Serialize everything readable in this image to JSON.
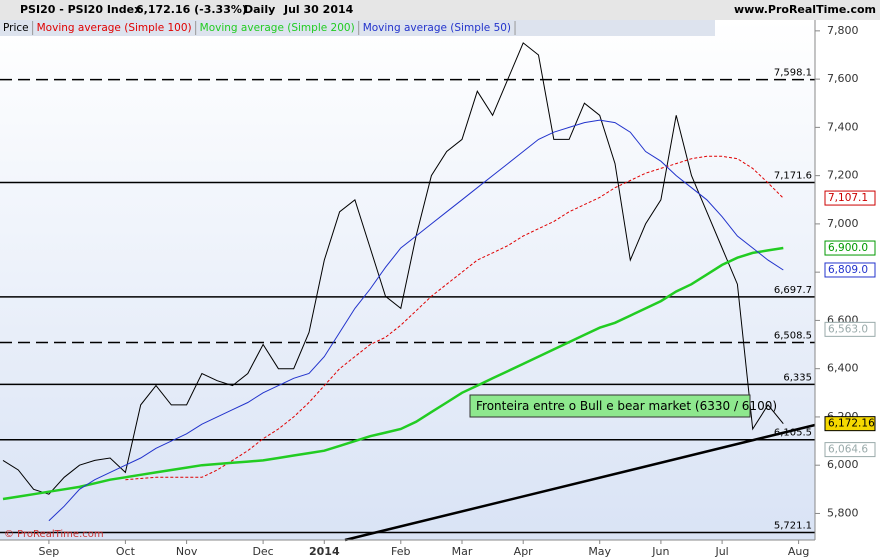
{
  "header": {
    "symbol": "PSI20 - PSI20 Index",
    "quote": "6,172.16 (-3.33%)",
    "period": "Daily",
    "date": "Jul 30 2014",
    "site": "www.ProRealTime.com"
  },
  "chart_data": {
    "type": "line",
    "categories": [
      null,
      null,
      null,
      "Sep",
      null,
      null,
      null,
      null,
      "Oct",
      null,
      null,
      null,
      "Nov",
      null,
      null,
      null,
      null,
      "Dec",
      null,
      null,
      null,
      "2014",
      null,
      null,
      null,
      null,
      "Feb",
      null,
      null,
      null,
      "Mar",
      null,
      null,
      null,
      "Apr",
      null,
      null,
      null,
      null,
      "May",
      null,
      null,
      null,
      "Jun",
      null,
      null,
      null,
      "Jul",
      null,
      null,
      null,
      null,
      "Aug"
    ],
    "series": [
      {
        "name": "Price",
        "color": "#000000",
        "width": 1,
        "values": [
          6020,
          5980,
          5900,
          5880,
          5950,
          6000,
          6020,
          6030,
          5970,
          6250,
          6330,
          6250,
          6250,
          6380,
          6350,
          6330,
          6380,
          6500,
          6400,
          6400,
          6550,
          6850,
          7050,
          7100,
          6900,
          6700,
          6650,
          6950,
          7200,
          7300,
          7350,
          7550,
          7450,
          7600,
          7750,
          7700,
          7350,
          7350,
          7500,
          7450,
          7250,
          6850,
          7000,
          7100,
          7450,
          7200,
          7050,
          6900,
          6750,
          6150,
          6250,
          6172.16,
          null
        ]
      },
      {
        "name": "Moving average (Simple 100)",
        "color": "#e00000",
        "width": 1,
        "dashed": true,
        "values": [
          null,
          null,
          null,
          null,
          null,
          null,
          null,
          null,
          5940,
          5945,
          5950,
          5950,
          5950,
          5950,
          5980,
          6020,
          6060,
          6110,
          6150,
          6200,
          6260,
          6330,
          6400,
          6450,
          6500,
          6530,
          6580,
          6640,
          6700,
          6750,
          6800,
          6850,
          6880,
          6910,
          6950,
          6980,
          7010,
          7050,
          7080,
          7110,
          7150,
          7180,
          7210,
          7230,
          7250,
          7270,
          7280,
          7280,
          7270,
          7230,
          7170,
          7107.1,
          null
        ]
      },
      {
        "name": "Moving average (Simple 200)",
        "color": "#22cc22",
        "width": 2.5,
        "values": [
          5860,
          5870,
          5880,
          5890,
          5900,
          5910,
          5925,
          5940,
          5950,
          5960,
          5970,
          5980,
          5990,
          6000,
          6005,
          6010,
          6015,
          6020,
          6030,
          6040,
          6050,
          6060,
          6080,
          6100,
          6120,
          6135,
          6150,
          6180,
          6220,
          6260,
          6300,
          6330,
          6360,
          6390,
          6420,
          6450,
          6480,
          6510,
          6540,
          6570,
          6590,
          6620,
          6650,
          6680,
          6720,
          6750,
          6790,
          6830,
          6860,
          6880,
          6890,
          6900,
          null
        ]
      },
      {
        "name": "Moving average (Simple 50)",
        "color": "#2233cc",
        "width": 1,
        "values": [
          null,
          null,
          null,
          5770,
          5830,
          5900,
          5940,
          5970,
          6000,
          6030,
          6070,
          6100,
          6130,
          6170,
          6200,
          6230,
          6260,
          6300,
          6330,
          6360,
          6380,
          6450,
          6550,
          6650,
          6730,
          6820,
          6900,
          6950,
          7000,
          7050,
          7100,
          7150,
          7200,
          7250,
          7300,
          7350,
          7380,
          7400,
          7420,
          7430,
          7420,
          7380,
          7300,
          7260,
          7200,
          7150,
          7100,
          7030,
          6950,
          6900,
          6850,
          6809,
          null
        ]
      }
    ],
    "ylim": [
      5690,
      7845
    ],
    "yticks": [
      {
        "value": 5800,
        "label": "5,800"
      },
      {
        "value": 6000,
        "label": "6,000"
      },
      {
        "value": 6200,
        "label": "6,200"
      },
      {
        "value": 6400,
        "label": "6,400"
      },
      {
        "value": 6600,
        "label": "6,600"
      },
      {
        "value": 6800,
        "label": "6,800"
      },
      {
        "value": 7000,
        "label": "7,000"
      },
      {
        "value": 7200,
        "label": "7,200"
      },
      {
        "value": 7400,
        "label": "7,400"
      },
      {
        "value": 7600,
        "label": "7,600"
      },
      {
        "value": 7800,
        "label": "7,800"
      }
    ],
    "levels": [
      {
        "value": 7598.1,
        "label": "7,598.1",
        "dashed": true
      },
      {
        "value": 7171.6,
        "label": "7,171.6"
      },
      {
        "value": 6697.7,
        "label": "6,697.7"
      },
      {
        "value": 6508.5,
        "label": "6,508.5",
        "dashed": true
      },
      {
        "value": 6335,
        "label": "6,335"
      },
      {
        "value": 6105.5,
        "label": "6,105.5"
      },
      {
        "value": 5721.1,
        "label": "5,721.1"
      }
    ],
    "tags": [
      {
        "value": 7107.1,
        "label": "7,107.1",
        "color": "#cc0000",
        "bg": "#ffffff"
      },
      {
        "value": 6900,
        "label": "6,900.0",
        "color": "#009900",
        "bg": "#ffffff"
      },
      {
        "value": 6809,
        "label": "6,809.0",
        "color": "#2233cc",
        "bg": "#ffffff"
      },
      {
        "value": 6563,
        "label": "6,563.0",
        "color": "#9aa",
        "bg": "#ffffff"
      },
      {
        "value": 6172.16,
        "label": "6,172.16",
        "color": "#000000",
        "bg": "#f5d800"
      },
      {
        "value": 6064.6,
        "label": "6,064.6",
        "color": "#9aa",
        "bg": "#ffffff"
      }
    ],
    "annotation": "Fronteira entre o Bull e bear market (6330 / 6100)",
    "watermark": "© ProRealTime.com"
  }
}
